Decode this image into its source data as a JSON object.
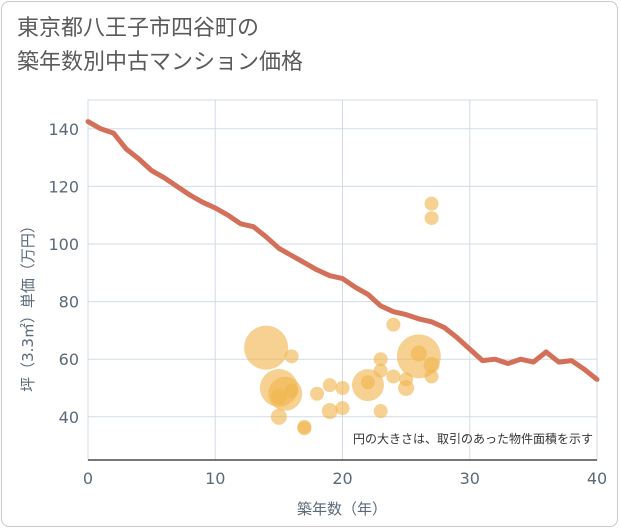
{
  "chart_data": {
    "type": "scatter",
    "title": [
      "東京都八王子市四谷町の",
      "築年数別中古マンション価格"
    ],
    "xlabel": "築年数（年）",
    "ylabel": "坪（3.3㎡）単価（万円）",
    "xlim": [
      0,
      40
    ],
    "ylim": [
      25,
      150
    ],
    "xticks": [
      0,
      10,
      20,
      30,
      40
    ],
    "yticks": [
      40,
      60,
      80,
      100,
      120,
      140
    ],
    "grid": true,
    "annotation": "円の大きさは、取引のあった物件面積を示す",
    "colors": {
      "line": "#d4705a",
      "bubble": "#f0b54d",
      "grid": "#d0dbe5",
      "axis_text": "#5a6a7a"
    },
    "line_series": {
      "name": "average",
      "x": [
        0,
        1,
        2,
        3,
        4,
        5,
        6,
        7,
        8,
        9,
        10,
        11,
        12,
        13,
        14,
        15,
        16,
        17,
        18,
        19,
        20,
        21,
        22,
        23,
        24,
        25,
        26,
        27,
        28,
        29,
        30,
        31,
        32,
        33,
        34,
        35,
        36,
        37,
        38,
        39,
        40
      ],
      "y": [
        142.5,
        140,
        138.5,
        133,
        129.5,
        125.5,
        123,
        120,
        117,
        114.5,
        112.5,
        110,
        107,
        106,
        102.5,
        98.5,
        96,
        93.5,
        91,
        89,
        88,
        85,
        82.5,
        78.5,
        76.5,
        75.5,
        74,
        73,
        71,
        67.5,
        63.5,
        59.5,
        60,
        58.5,
        60,
        59,
        62.5,
        59,
        59.5,
        56.5,
        53
      ]
    },
    "bubbles": [
      {
        "x": 14,
        "y": 64,
        "size": 22
      },
      {
        "x": 15,
        "y": 50,
        "size": 19
      },
      {
        "x": 15.5,
        "y": 48,
        "size": 17
      },
      {
        "x": 15,
        "y": 47,
        "size": 8
      },
      {
        "x": 16,
        "y": 49,
        "size": 7
      },
      {
        "x": 15,
        "y": 40,
        "size": 8
      },
      {
        "x": 16,
        "y": 61,
        "size": 7
      },
      {
        "x": 17,
        "y": 36,
        "size": 7
      },
      {
        "x": 17,
        "y": 36.5,
        "size": 7
      },
      {
        "x": 18,
        "y": 48,
        "size": 7
      },
      {
        "x": 19,
        "y": 51,
        "size": 7
      },
      {
        "x": 19,
        "y": 42,
        "size": 8
      },
      {
        "x": 20,
        "y": 50,
        "size": 7
      },
      {
        "x": 20,
        "y": 43,
        "size": 7
      },
      {
        "x": 22,
        "y": 51,
        "size": 16
      },
      {
        "x": 22,
        "y": 52,
        "size": 7
      },
      {
        "x": 23,
        "y": 56,
        "size": 7
      },
      {
        "x": 23,
        "y": 60,
        "size": 7
      },
      {
        "x": 23,
        "y": 42,
        "size": 7
      },
      {
        "x": 24,
        "y": 72,
        "size": 7
      },
      {
        "x": 24,
        "y": 54,
        "size": 7
      },
      {
        "x": 25,
        "y": 53,
        "size": 7
      },
      {
        "x": 25,
        "y": 50,
        "size": 8
      },
      {
        "x": 26,
        "y": 61,
        "size": 22
      },
      {
        "x": 26,
        "y": 62,
        "size": 8
      },
      {
        "x": 27,
        "y": 58,
        "size": 8
      },
      {
        "x": 27,
        "y": 54,
        "size": 7
      },
      {
        "x": 27,
        "y": 114,
        "size": 7
      },
      {
        "x": 27,
        "y": 109,
        "size": 7
      }
    ]
  }
}
